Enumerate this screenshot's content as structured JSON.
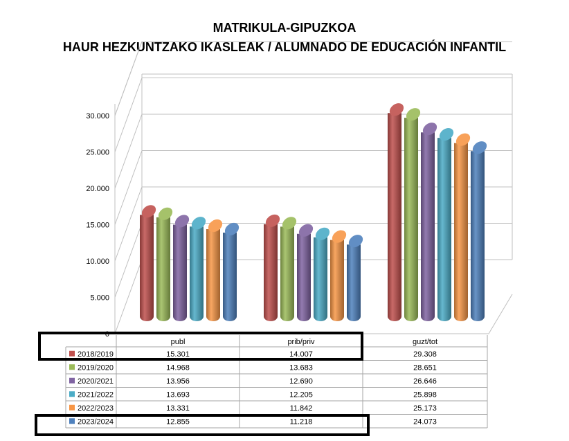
{
  "chart_data": {
    "type": "bar",
    "title": "MATRIKULA-GIPUZKOA",
    "subtitle": "HAUR HEZKUNTZAKO IKASLEAK / ALUMNADO DE EDUCACIÓN INFANTIL",
    "categories": [
      "publ",
      "prib/priv",
      "guzt/tot"
    ],
    "series": [
      {
        "name": "2018/2019",
        "values": [
          15301,
          14007,
          29308
        ],
        "display": [
          "15.301",
          "14.007",
          "29.308"
        ],
        "color": "#c0504d"
      },
      {
        "name": "2019/2020",
        "values": [
          14968,
          13683,
          28651
        ],
        "display": [
          "14.968",
          "13.683",
          "28.651"
        ],
        "color": "#9bbb59"
      },
      {
        "name": "2020/2021",
        "values": [
          13956,
          12690,
          26646
        ],
        "display": [
          "13.956",
          "12.690",
          "26.646"
        ],
        "color": "#8064a2"
      },
      {
        "name": "2021/2022",
        "values": [
          13693,
          12205,
          25898
        ],
        "display": [
          "13.693",
          "12.205",
          "25.898"
        ],
        "color": "#4bacc6"
      },
      {
        "name": "2022/2023",
        "values": [
          13331,
          11842,
          25173
        ],
        "display": [
          "13.331",
          "11.842",
          "25.173"
        ],
        "color": "#f79646"
      },
      {
        "name": "2023/2024",
        "values": [
          12855,
          11218,
          24073
        ],
        "display": [
          "12.855",
          "11.218",
          "24.073"
        ],
        "color": "#4f81bd"
      }
    ],
    "y_ticks": [
      "0",
      "5.000",
      "10.000",
      "15.000",
      "20.000",
      "25.000",
      "30.000"
    ],
    "ylim": [
      0,
      30000
    ],
    "grid": true,
    "legend": "data-table",
    "highlighted_rows": [
      "2018/2019",
      "2023/2024"
    ]
  }
}
